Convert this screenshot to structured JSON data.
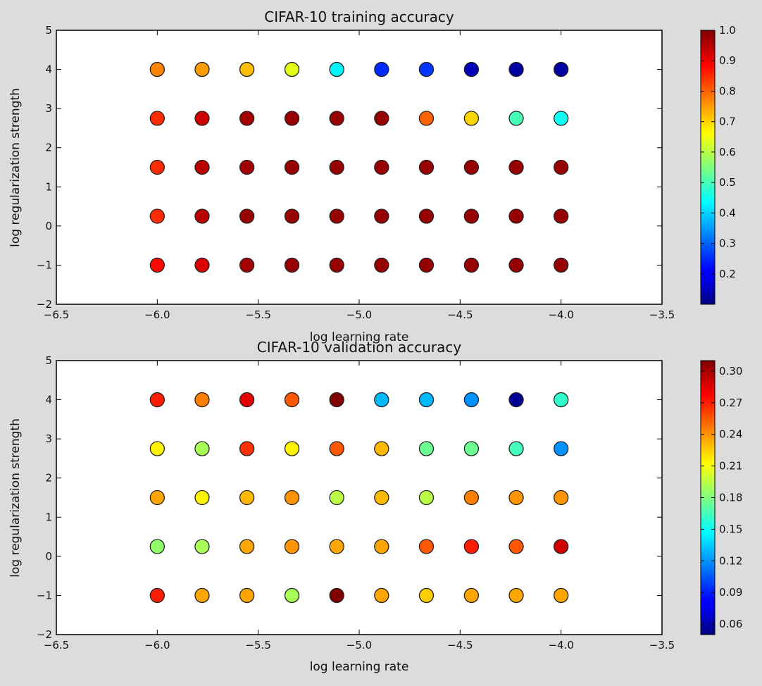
{
  "chart_data": [
    {
      "type": "scatter",
      "title": "CIFAR-10 training accuracy",
      "xlabel": "log learning rate",
      "ylabel": "log regularization strength",
      "xlim": [
        -6.5,
        -3.5
      ],
      "ylim": [
        -2,
        5
      ],
      "xticks": [
        "−6.5",
        "−6.0",
        "−5.5",
        "−5.0",
        "−4.5",
        "−4.0",
        "−3.5"
      ],
      "yticks": [
        "−2",
        "−1",
        "0",
        "1",
        "2",
        "3",
        "4",
        "5"
      ],
      "colorbar": {
        "colormap": "jet",
        "range": [
          0.1,
          1.0
        ],
        "ticks": [
          0.2,
          0.3,
          0.4,
          0.5,
          0.6,
          0.7,
          0.8,
          0.9,
          1.0
        ],
        "tick_labels": [
          "0.2",
          "0.3",
          "0.4",
          "0.5",
          "0.6",
          "0.7",
          "0.8",
          "0.9",
          "1.0"
        ]
      },
      "x": [
        -6.0,
        -5.778,
        -5.556,
        -5.333,
        -5.111,
        -4.889,
        -4.667,
        -4.444,
        -4.222,
        -4.0
      ],
      "y": [
        -1.0,
        0.25,
        1.5,
        2.75,
        4.0
      ],
      "values": [
        [
          0.88,
          0.92,
          0.97,
          0.98,
          0.98,
          0.98,
          0.98,
          0.98,
          0.98,
          0.98
        ],
        [
          0.85,
          0.95,
          0.98,
          0.98,
          0.98,
          0.98,
          0.98,
          0.98,
          0.98,
          0.98
        ],
        [
          0.85,
          0.95,
          0.97,
          0.98,
          0.98,
          0.98,
          0.98,
          0.98,
          0.98,
          0.98
        ],
        [
          0.85,
          0.93,
          0.97,
          0.98,
          0.98,
          0.98,
          0.8,
          0.7,
          0.5,
          0.45
        ],
        [
          0.77,
          0.75,
          0.72,
          0.64,
          0.43,
          0.25,
          0.26,
          0.15,
          0.13,
          0.13
        ]
      ]
    },
    {
      "type": "scatter",
      "title": "CIFAR-10 validation accuracy",
      "xlabel": "log learning rate",
      "ylabel": "log regularization strength",
      "xlim": [
        -6.5,
        -3.5
      ],
      "ylim": [
        -2,
        5
      ],
      "xticks": [
        "−6.5",
        "−6.0",
        "−5.5",
        "−5.0",
        "−4.5",
        "−4.0",
        "−3.5"
      ],
      "yticks": [
        "−2",
        "−1",
        "0",
        "1",
        "2",
        "3",
        "4",
        "5"
      ],
      "colorbar": {
        "colormap": "jet",
        "range": [
          0.05,
          0.31
        ],
        "ticks": [
          0.06,
          0.09,
          0.12,
          0.15,
          0.18,
          0.21,
          0.24,
          0.27,
          0.3
        ],
        "tick_labels": [
          "0.06",
          "0.09",
          "0.12",
          "0.15",
          "0.18",
          "0.21",
          "0.24",
          "0.27",
          "0.30"
        ]
      },
      "x": [
        -6.0,
        -5.778,
        -5.556,
        -5.333,
        -5.111,
        -4.889,
        -4.667,
        -4.444,
        -4.222,
        -4.0
      ],
      "y": [
        -1.0,
        0.25,
        1.5,
        2.75,
        4.0
      ],
      "values": [
        [
          0.27,
          0.235,
          0.235,
          0.19,
          0.31,
          0.235,
          0.225,
          0.235,
          0.235,
          0.235
        ],
        [
          0.185,
          0.19,
          0.235,
          0.24,
          0.235,
          0.235,
          0.255,
          0.27,
          0.255,
          0.29
        ],
        [
          0.235,
          0.215,
          0.23,
          0.24,
          0.195,
          0.23,
          0.195,
          0.245,
          0.24,
          0.24
        ],
        [
          0.215,
          0.19,
          0.265,
          0.215,
          0.255,
          0.23,
          0.175,
          0.175,
          0.165,
          0.12
        ],
        [
          0.27,
          0.245,
          0.285,
          0.255,
          0.31,
          0.13,
          0.13,
          0.12,
          0.055,
          0.16
        ]
      ]
    }
  ]
}
